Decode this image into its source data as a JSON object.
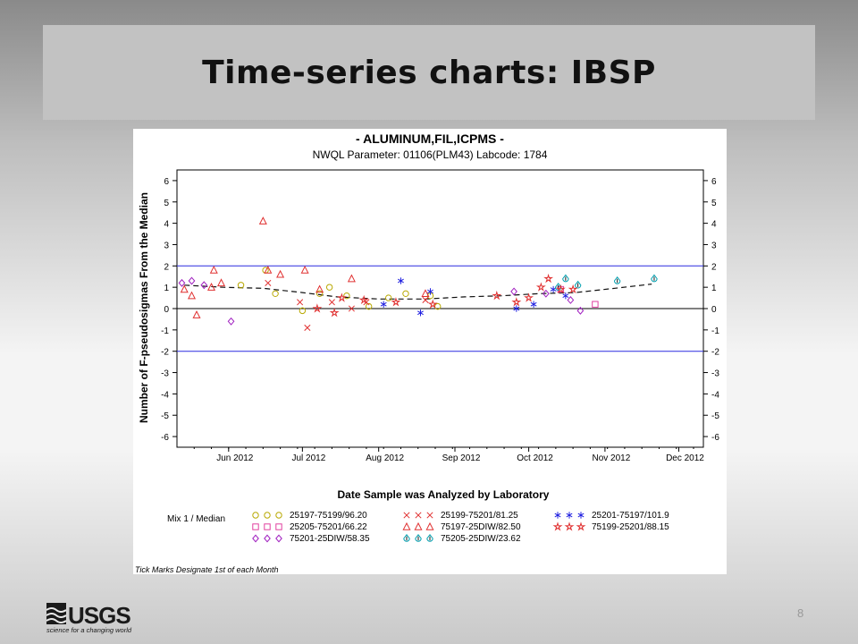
{
  "slide": {
    "title": "Time-series charts: IBSP",
    "page_number": "8",
    "logo_text": "USGS",
    "logo_tagline": "science for a changing world"
  },
  "chart_data": {
    "type": "scatter",
    "title": "- ALUMINUM,FIL,ICPMS -",
    "subtitle": "NWQL Parameter: 01106(PLM43) Labcode: 1784",
    "xlabel": "Date Sample was Analyzed by Laboratory",
    "ylabel": "Number of F-pseudosigmas From the Median",
    "note": "Tick Marks Designate 1st of each Month",
    "ylim": [
      -6.5,
      6.5
    ],
    "yticks": [
      -6,
      -5,
      -4,
      -3,
      -2,
      -1,
      0,
      1,
      2,
      3,
      4,
      5,
      6
    ],
    "xlim": [
      "2012-05-11",
      "2012-12-11"
    ],
    "xticks": [
      {
        "date": "2012-06-01",
        "label": "Jun  2012"
      },
      {
        "date": "2012-07-01",
        "label": "Jul  2012"
      },
      {
        "date": "2012-08-01",
        "label": "Aug  2012"
      },
      {
        "date": "2012-09-01",
        "label": "Sep  2012"
      },
      {
        "date": "2012-10-01",
        "label": "Oct  2012"
      },
      {
        "date": "2012-11-01",
        "label": "Nov  2012"
      },
      {
        "date": "2012-12-01",
        "label": "Dec  2012"
      }
    ],
    "reference_lines": [
      {
        "y": 2,
        "color": "#2a2ae0"
      },
      {
        "y": 0,
        "color": "#000000"
      },
      {
        "y": -2,
        "color": "#2a2ae0"
      }
    ],
    "legend_title": "Mix 1 / Median",
    "series": [
      {
        "name": "25197-75199/96.20",
        "marker": "circle",
        "color": "#b8a800",
        "points": [
          [
            "2012-06-06",
            1.1
          ],
          [
            "2012-06-16",
            1.8
          ],
          [
            "2012-06-20",
            0.7
          ],
          [
            "2012-07-01",
            -0.1
          ],
          [
            "2012-07-08",
            0.7
          ],
          [
            "2012-07-12",
            1.0
          ],
          [
            "2012-07-19",
            0.6
          ],
          [
            "2012-07-28",
            0.1
          ],
          [
            "2012-08-05",
            0.5
          ],
          [
            "2012-08-12",
            0.7
          ],
          [
            "2012-08-22",
            0.6
          ],
          [
            "2012-08-25",
            0.1
          ]
        ]
      },
      {
        "name": "25199-75201/81.25",
        "marker": "x",
        "color": "#e03030",
        "points": [
          [
            "2012-06-17",
            1.2
          ],
          [
            "2012-06-30",
            0.3
          ],
          [
            "2012-07-03",
            -0.9
          ],
          [
            "2012-07-13",
            0.3
          ],
          [
            "2012-07-21",
            0.0
          ],
          [
            "2012-07-27",
            0.3
          ],
          [
            "2012-08-20",
            0.4
          ]
        ]
      },
      {
        "name": "25201-75197/101.9",
        "marker": "asterisk",
        "color": "#2020e0",
        "points": [
          [
            "2012-08-03",
            0.2
          ],
          [
            "2012-08-10",
            1.3
          ],
          [
            "2012-08-18",
            -0.2
          ],
          [
            "2012-08-22",
            0.8
          ],
          [
            "2012-09-26",
            0.0
          ],
          [
            "2012-10-03",
            0.2
          ],
          [
            "2012-10-11",
            0.9
          ],
          [
            "2012-10-16",
            0.6
          ]
        ]
      },
      {
        "name": "25205-75201/66.22",
        "marker": "square",
        "color": "#e040a0",
        "points": [
          [
            "2012-10-14",
            0.9
          ],
          [
            "2012-10-28",
            0.2
          ]
        ]
      },
      {
        "name": "75197-25DIW/82.50",
        "marker": "triangle",
        "color": "#e03030",
        "points": [
          [
            "2012-05-14",
            0.9
          ],
          [
            "2012-05-17",
            0.6
          ],
          [
            "2012-05-19",
            -0.3
          ],
          [
            "2012-05-25",
            1.0
          ],
          [
            "2012-05-26",
            1.8
          ],
          [
            "2012-05-29",
            1.2
          ],
          [
            "2012-06-15",
            4.1
          ],
          [
            "2012-06-17",
            1.8
          ],
          [
            "2012-06-22",
            1.6
          ],
          [
            "2012-07-02",
            1.8
          ],
          [
            "2012-07-08",
            0.9
          ],
          [
            "2012-07-21",
            1.4
          ],
          [
            "2012-08-20",
            0.7
          ]
        ]
      },
      {
        "name": "75205-25DIW/23.62",
        "marker": "drop",
        "color": "#00a0b0",
        "points": [
          [
            "2012-10-13",
            1.0
          ],
          [
            "2012-10-16",
            1.4
          ],
          [
            "2012-10-21",
            1.1
          ],
          [
            "2012-11-06",
            1.3
          ],
          [
            "2012-11-21",
            1.4
          ]
        ]
      },
      {
        "name": "75199-25201/88.15",
        "marker": "star",
        "color": "#e03030",
        "points": [
          [
            "2012-07-07",
            0.0
          ],
          [
            "2012-07-14",
            -0.2
          ],
          [
            "2012-07-17",
            0.5
          ],
          [
            "2012-07-26",
            0.4
          ],
          [
            "2012-08-08",
            0.3
          ],
          [
            "2012-08-23",
            0.2
          ],
          [
            "2012-09-18",
            0.6
          ],
          [
            "2012-09-26",
            0.3
          ],
          [
            "2012-10-01",
            0.5
          ],
          [
            "2012-10-06",
            1.0
          ],
          [
            "2012-10-09",
            1.4
          ],
          [
            "2012-10-14",
            0.9
          ],
          [
            "2012-10-19",
            0.9
          ]
        ]
      },
      {
        "name": "75201-25DIW/58.35",
        "marker": "diamond",
        "color": "#a020c0",
        "points": [
          [
            "2012-05-13",
            1.2
          ],
          [
            "2012-05-17",
            1.3
          ],
          [
            "2012-05-22",
            1.1
          ],
          [
            "2012-06-02",
            -0.6
          ],
          [
            "2012-09-25",
            0.8
          ],
          [
            "2012-10-08",
            0.7
          ],
          [
            "2012-10-18",
            0.4
          ],
          [
            "2012-10-22",
            -0.1
          ]
        ]
      }
    ],
    "trend": {
      "style": "dashed",
      "color": "#111111",
      "points": [
        [
          "2012-05-14",
          1.1
        ],
        [
          "2012-05-30",
          1.0
        ],
        [
          "2012-06-15",
          0.95
        ],
        [
          "2012-07-01",
          0.75
        ],
        [
          "2012-07-15",
          0.55
        ],
        [
          "2012-08-01",
          0.45
        ],
        [
          "2012-08-20",
          0.45
        ],
        [
          "2012-09-05",
          0.55
        ],
        [
          "2012-09-20",
          0.6
        ],
        [
          "2012-10-05",
          0.7
        ],
        [
          "2012-10-20",
          0.75
        ],
        [
          "2012-11-05",
          0.95
        ],
        [
          "2012-11-20",
          1.15
        ]
      ]
    }
  }
}
